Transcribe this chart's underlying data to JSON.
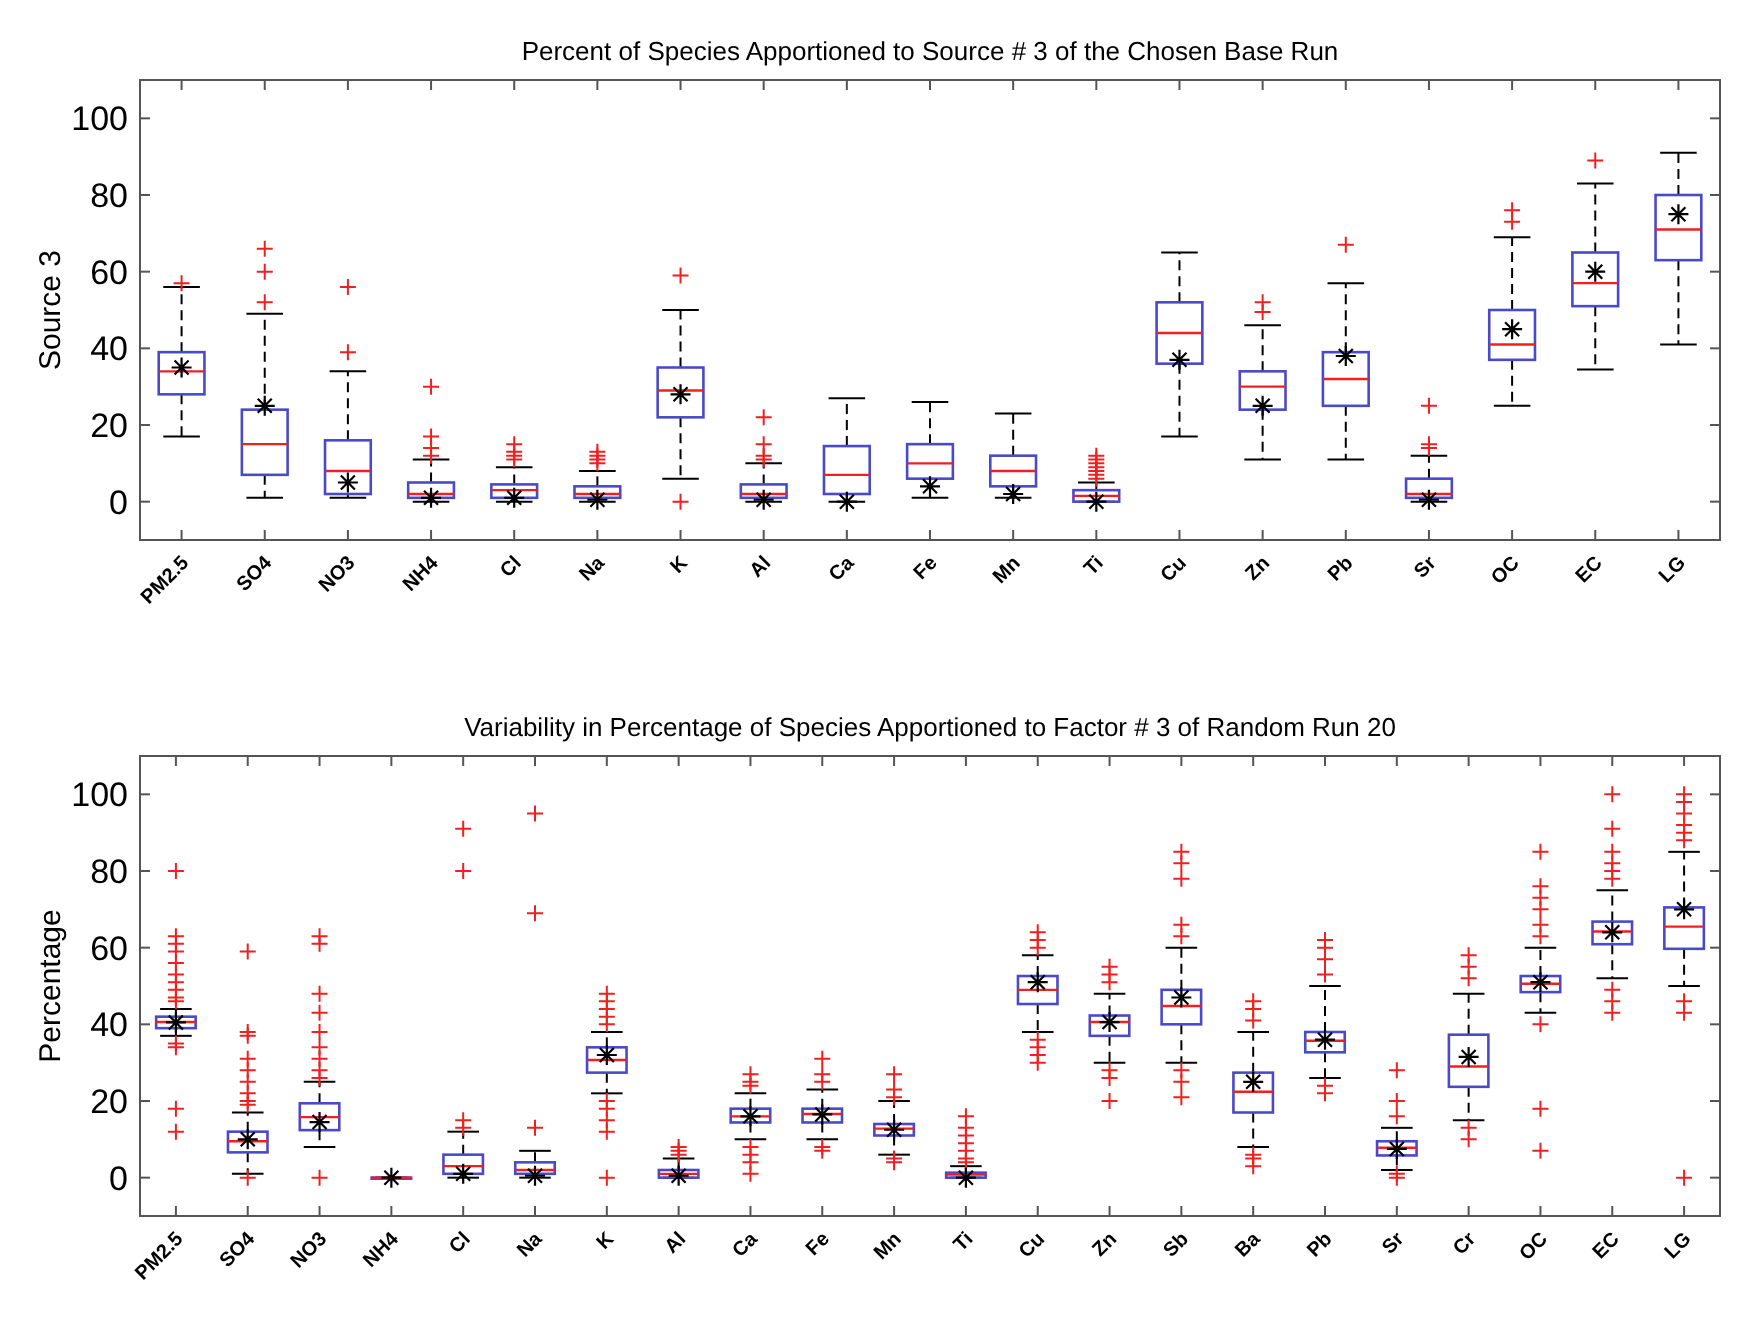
{
  "chart_data": [
    {
      "type": "box",
      "title": "Percent of Species Apportioned to Source # 3 of the Chosen Base Run",
      "ylabel": "Source 3",
      "categories": [
        "PM2.5",
        "SO4",
        "NO3",
        "NH4",
        "Cl",
        "Na",
        "K",
        "Al",
        "Ca",
        "Fe",
        "Mn",
        "Ti",
        "Cu",
        "Zn",
        "Pb",
        "Sr",
        "OC",
        "EC",
        "LG"
      ],
      "ylim": [
        -10,
        110
      ],
      "yticks": [
        0,
        20,
        40,
        60,
        80,
        100
      ],
      "marker": "cross",
      "series": [
        {
          "color": "#4a4ac8",
          "boxes": [
            {
              "low": 17,
              "q1": 28,
              "median": 34,
              "q3": 39,
              "high": 56,
              "mean": 35,
              "outliers": [
                57
              ]
            },
            {
              "low": 1,
              "q1": 7,
              "median": 15,
              "q3": 24,
              "high": 49,
              "mean": 25,
              "outliers": [
                52,
                60,
                66
              ]
            },
            {
              "low": 1,
              "q1": 2,
              "median": 8,
              "q3": 16,
              "high": 34,
              "mean": 5,
              "outliers": [
                39,
                56
              ]
            },
            {
              "low": 0,
              "q1": 1,
              "median": 2,
              "q3": 5,
              "high": 11,
              "mean": 1,
              "outliers": [
                12,
                14,
                17,
                30
              ]
            },
            {
              "low": 0,
              "q1": 1,
              "median": 3,
              "q3": 4.5,
              "high": 9,
              "mean": 1,
              "outliers": [
                11,
                12,
                13,
                15
              ]
            },
            {
              "low": 0,
              "q1": 1,
              "median": 2,
              "q3": 4,
              "high": 8,
              "mean": 0.5,
              "outliers": [
                10,
                11,
                12,
                13
              ]
            },
            {
              "low": 6,
              "q1": 22,
              "median": 29,
              "q3": 35,
              "high": 50,
              "mean": 28,
              "outliers": [
                0,
                59
              ]
            },
            {
              "low": 0,
              "q1": 1,
              "median": 2,
              "q3": 4.5,
              "high": 10,
              "mean": 0.5,
              "outliers": [
                11,
                12,
                15,
                22
              ]
            },
            {
              "low": 0,
              "q1": 2,
              "median": 7,
              "q3": 14.5,
              "high": 27,
              "mean": 0
            },
            {
              "low": 1,
              "q1": 6,
              "median": 10,
              "q3": 15,
              "high": 26,
              "mean": 4
            },
            {
              "low": 1,
              "q1": 4,
              "median": 8,
              "q3": 12,
              "high": 23,
              "mean": 2
            },
            {
              "low": 0,
              "q1": 0,
              "median": 1.5,
              "q3": 3,
              "high": 5,
              "mean": 0,
              "outliers": [
                6,
                7,
                8,
                9,
                10,
                11,
                12
              ]
            },
            {
              "low": 17,
              "q1": 36,
              "median": 44,
              "q3": 52,
              "high": 65,
              "mean": 37
            },
            {
              "low": 11,
              "q1": 24,
              "median": 30,
              "q3": 34,
              "high": 46,
              "mean": 25,
              "outliers": [
                49.5,
                52
              ]
            },
            {
              "low": 11,
              "q1": 25,
              "median": 32,
              "q3": 39,
              "high": 57,
              "mean": 38,
              "outliers": [
                67
              ]
            },
            {
              "low": 0,
              "q1": 1,
              "median": 2,
              "q3": 6,
              "high": 12,
              "mean": 0.5,
              "outliers": [
                14,
                15,
                25
              ]
            },
            {
              "low": 25,
              "q1": 37,
              "median": 41,
              "q3": 50,
              "high": 69,
              "mean": 45,
              "outliers": [
                73,
                76
              ]
            },
            {
              "low": 34.5,
              "q1": 51,
              "median": 57,
              "q3": 65,
              "high": 83,
              "mean": 60,
              "outliers": [
                89
              ]
            },
            {
              "low": 41,
              "q1": 63,
              "median": 71,
              "q3": 80,
              "high": 91,
              "mean": 75
            }
          ]
        }
      ]
    },
    {
      "type": "box",
      "title": "Variability in Percentage of Species Apportioned to Factor # 3 of Random Run 20",
      "ylabel": "Percentage",
      "categories": [
        "PM2.5",
        "SO4",
        "NO3",
        "NH4",
        "Cl",
        "Na",
        "K",
        "Al",
        "Ca",
        "Fe",
        "Mn",
        "Ti",
        "Cu",
        "Zn",
        "Sb",
        "Ba",
        "Pb",
        "Sr",
        "Cr",
        "OC",
        "EC",
        "LG"
      ],
      "ylim": [
        -10,
        110
      ],
      "yticks": [
        0,
        20,
        40,
        60,
        80,
        100
      ],
      "marker": "cross",
      "series": [
        {
          "color": "#4a4ac8",
          "boxes": [
            {
              "low": 37,
              "q1": 39,
              "median": 40.6,
              "q3": 42,
              "high": 44,
              "mean": 40.5,
              "outliers": [
                12,
                18,
                34,
                35,
                46,
                47,
                49,
                51,
                53,
                56,
                59,
                61,
                63,
                80
              ]
            },
            {
              "low": 1,
              "q1": 6.6,
              "median": 9.5,
              "q3": 12,
              "high": 17,
              "mean": 10,
              "outliers": [
                0,
                19,
                20,
                22,
                25,
                28,
                31,
                37,
                38,
                59
              ]
            },
            {
              "low": 8,
              "q1": 12.4,
              "median": 15.8,
              "q3": 19.4,
              "high": 25,
              "mean": 14.5,
              "outliers": [
                0,
                26,
                28,
                31,
                34,
                38,
                43,
                48,
                61,
                63
              ]
            },
            {
              "low": 0,
              "q1": 0,
              "median": 0,
              "q3": 0,
              "high": 0,
              "mean": 0
            },
            {
              "low": 0,
              "q1": 1,
              "median": 3,
              "q3": 6,
              "high": 12,
              "mean": 1,
              "outliers": [
                13,
                15,
                80,
                91
              ]
            },
            {
              "low": 0,
              "q1": 1,
              "median": 2,
              "q3": 4,
              "high": 7,
              "mean": 0.5,
              "outliers": [
                13,
                69,
                95
              ]
            },
            {
              "low": 22,
              "q1": 27.4,
              "median": 30.7,
              "q3": 34,
              "high": 38,
              "mean": 32,
              "outliers": [
                0,
                12,
                15,
                18,
                20,
                40,
                42,
                44,
                46,
                48
              ]
            },
            {
              "low": 0,
              "q1": 0,
              "median": 1,
              "q3": 2,
              "high": 5,
              "mean": 0.5,
              "outliers": [
                6,
                7,
                8
              ]
            },
            {
              "low": 10,
              "q1": 14.4,
              "median": 16,
              "q3": 18,
              "high": 22,
              "mean": 16,
              "outliers": [
                1,
                4,
                6,
                8,
                24,
                25,
                27
              ]
            },
            {
              "low": 10,
              "q1": 14.4,
              "median": 16.6,
              "q3": 18,
              "high": 23,
              "mean": 16.5,
              "outliers": [
                7,
                8,
                25,
                27,
                31
              ]
            },
            {
              "low": 6,
              "q1": 11,
              "median": 12.8,
              "q3": 14,
              "high": 20,
              "mean": 12.5,
              "outliers": [
                4,
                5,
                21,
                23,
                27
              ]
            },
            {
              "low": 0,
              "q1": 0,
              "median": 0.8,
              "q3": 1.3,
              "high": 3,
              "mean": 0,
              "outliers": [
                4,
                5,
                7,
                9,
                11,
                13,
                16
              ]
            },
            {
              "low": 38,
              "q1": 45.3,
              "median": 49,
              "q3": 52.6,
              "high": 58,
              "mean": 51,
              "outliers": [
                30,
                32,
                34,
                36,
                60,
                62,
                64
              ]
            },
            {
              "low": 30,
              "q1": 37,
              "median": 40.6,
              "q3": 42.3,
              "high": 48,
              "mean": 40.6,
              "outliers": [
                20,
                26,
                28,
                51,
                53,
                55
              ]
            },
            {
              "low": 30,
              "q1": 40,
              "median": 44.8,
              "q3": 49,
              "high": 60,
              "mean": 47,
              "outliers": [
                21,
                25,
                28,
                63,
                66,
                78,
                82,
                85
              ]
            },
            {
              "low": 8,
              "q1": 17,
              "median": 22.4,
              "q3": 27.4,
              "high": 38,
              "mean": 25,
              "outliers": [
                3,
                5,
                6,
                41,
                44,
                46
              ]
            },
            {
              "low": 26,
              "q1": 32.7,
              "median": 35.7,
              "q3": 38,
              "high": 50,
              "mean": 36,
              "outliers": [
                22,
                24,
                53,
                57,
                60,
                62
              ]
            },
            {
              "low": 2,
              "q1": 5.8,
              "median": 7.8,
              "q3": 9.5,
              "high": 13,
              "mean": 7.5,
              "outliers": [
                0,
                1,
                16,
                20,
                28
              ]
            },
            {
              "low": 15,
              "q1": 23.7,
              "median": 29,
              "q3": 37.3,
              "high": 48,
              "mean": 31.5,
              "outliers": [
                10,
                13,
                52,
                55,
                58
              ]
            },
            {
              "low": 43,
              "q1": 48.4,
              "median": 50.6,
              "q3": 52.6,
              "high": 60,
              "mean": 51,
              "outliers": [
                7,
                18,
                40,
                63,
                66,
                70,
                73,
                76,
                85
              ]
            },
            {
              "low": 52,
              "q1": 60.9,
              "median": 64.2,
              "q3": 66.8,
              "high": 75,
              "mean": 64,
              "outliers": [
                43,
                46,
                49,
                78,
                80,
                82,
                85,
                91,
                100
              ]
            },
            {
              "low": 50,
              "q1": 59.7,
              "median": 65.5,
              "q3": 70.5,
              "high": 85,
              "mean": 70,
              "outliers": [
                0,
                43,
                46,
                88,
                90,
                92,
                95,
                98,
                100
              ]
            }
          ]
        }
      ]
    }
  ]
}
